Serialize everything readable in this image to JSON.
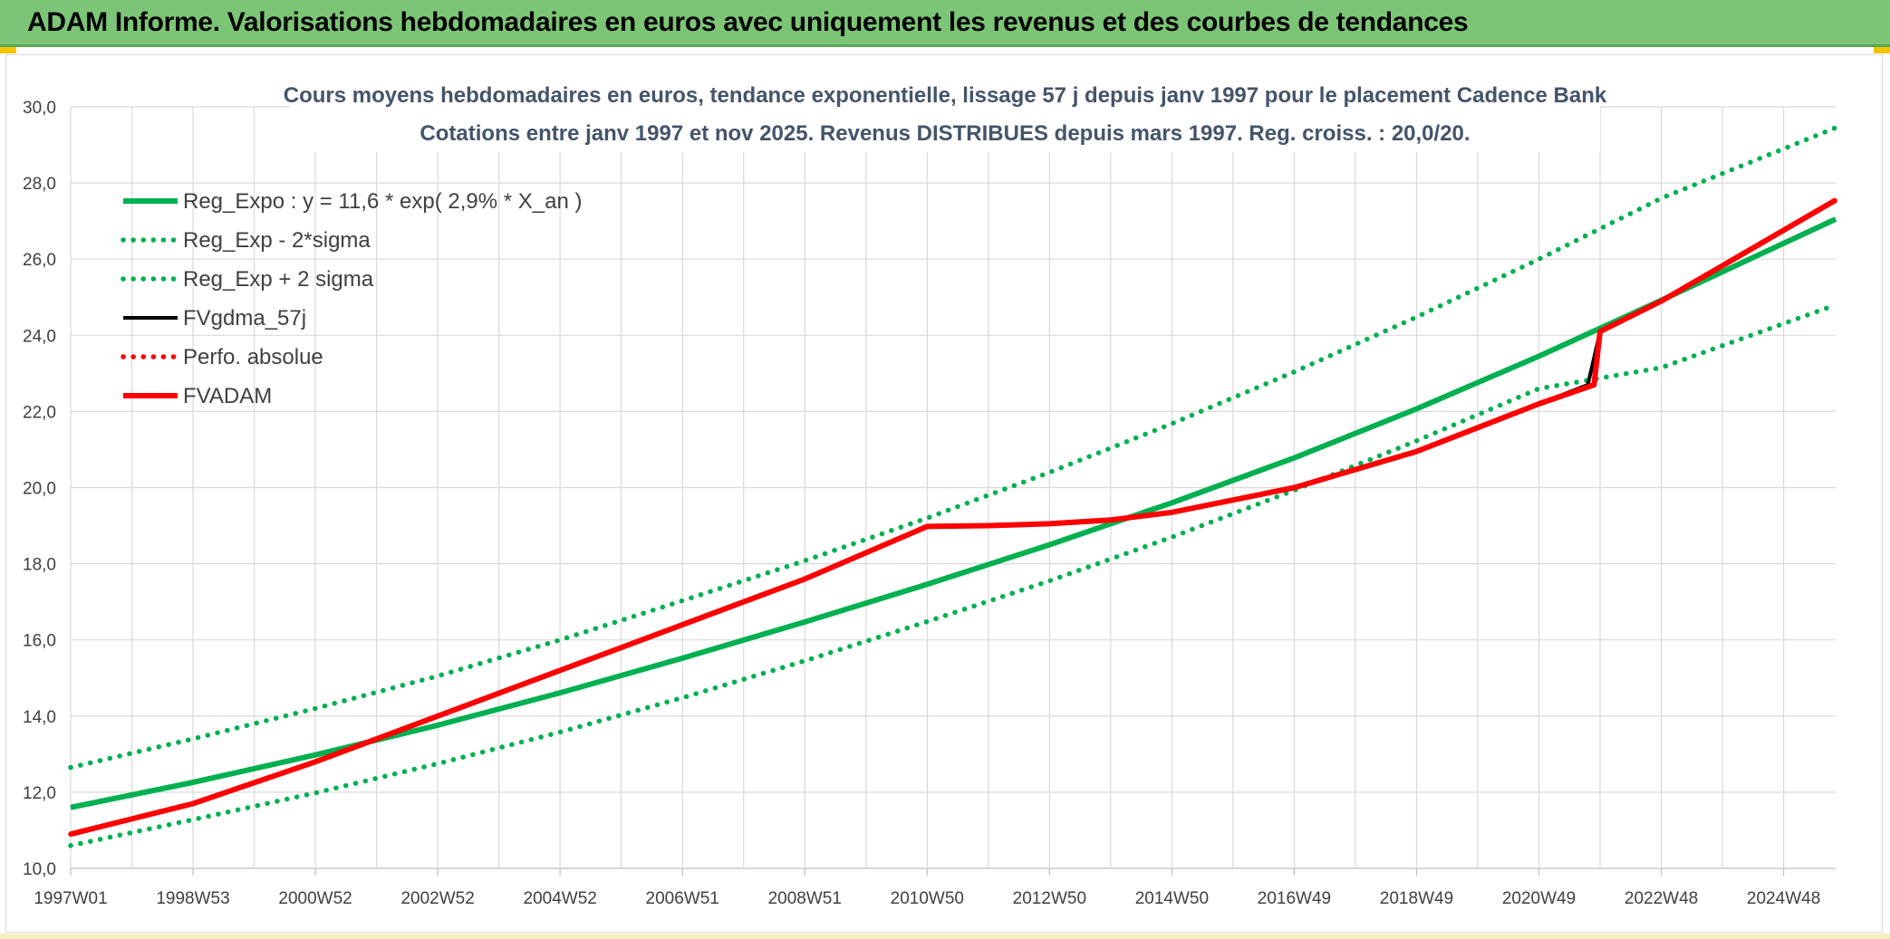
{
  "header": {
    "title": "ADAM Informe. Valorisations hebdomadaires en euros avec uniquement les revenus et des courbes de tendances"
  },
  "colors": {
    "header_bg": "#7cc576",
    "trend_green": "#00b050",
    "red": "#ff0000",
    "black": "#000000",
    "grid": "#d9d9d9",
    "text": "#404040",
    "title_text": "#44546a"
  },
  "chart_data": {
    "type": "line",
    "title_line1": "Cours moyens hebdomadaires en euros, tendance exponentielle, lissage 57 j depuis janv 1997 pour le placement Cadence Bank",
    "title_line2": "Cotations entre janv 1997 et nov 2025. Revenus DISTRIBUES depuis mars 1997. Reg. croiss. : 20,0/20.",
    "xlabel": "",
    "ylabel": "",
    "ylim": [
      10,
      30
    ],
    "yticks": [
      "10,0",
      "12,0",
      "14,0",
      "16,0",
      "18,0",
      "20,0",
      "22,0",
      "24,0",
      "26,0",
      "28,0",
      "30,0"
    ],
    "xlim": [
      1997.0,
      2025.85
    ],
    "xticks": [
      {
        "label": "1997W01",
        "x": 1997.0
      },
      {
        "label": "1998W53",
        "x": 1999.0
      },
      {
        "label": "2000W52",
        "x": 2001.0
      },
      {
        "label": "2002W52",
        "x": 2003.0
      },
      {
        "label": "2004W52",
        "x": 2005.0
      },
      {
        "label": "2006W51",
        "x": 2007.0
      },
      {
        "label": "2008W51",
        "x": 2009.0
      },
      {
        "label": "2010W50",
        "x": 2011.0
      },
      {
        "label": "2012W50",
        "x": 2013.0
      },
      {
        "label": "2014W50",
        "x": 2015.0
      },
      {
        "label": "2016W49",
        "x": 2017.0
      },
      {
        "label": "2018W49",
        "x": 2019.0
      },
      {
        "label": "2020W49",
        "x": 2021.0
      },
      {
        "label": "2022W48",
        "x": 2023.0
      },
      {
        "label": "2024W48",
        "x": 2025.0
      }
    ],
    "grid": true,
    "legend_position": "top-left",
    "series": [
      {
        "name": "Reg_Expo : y = 11,6 * exp( 2,9% *  X_an )",
        "style": "solid-thick",
        "color": "#00b050",
        "x": [
          1997.0,
          1999.0,
          2001.0,
          2003.0,
          2005.0,
          2007.0,
          2009.0,
          2011.0,
          2013.0,
          2015.0,
          2017.0,
          2019.0,
          2021.0,
          2023.0,
          2025.85
        ],
        "y": [
          11.6,
          12.26,
          12.98,
          13.76,
          14.61,
          15.52,
          16.47,
          17.46,
          18.5,
          19.6,
          20.78,
          22.07,
          23.45,
          24.92,
          27.05
        ]
      },
      {
        "name": "Reg_Exp - 2*sigma",
        "style": "dotted",
        "color": "#00b050",
        "x": [
          1997.0,
          1999.0,
          2001.0,
          2003.0,
          2005.0,
          2007.0,
          2009.0,
          2011.0,
          2013.0,
          2015.0,
          2017.0,
          2019.0,
          2021.0,
          2023.0,
          2025.85
        ],
        "y": [
          10.6,
          11.28,
          11.98,
          12.75,
          13.58,
          14.48,
          15.45,
          16.48,
          17.55,
          18.7,
          19.93,
          21.23,
          22.6,
          23.15,
          24.8
        ]
      },
      {
        "name": "Reg_Exp + 2 sigma",
        "style": "dotted",
        "color": "#00b050",
        "x": [
          1997.0,
          1999.0,
          2001.0,
          2003.0,
          2005.0,
          2007.0,
          2009.0,
          2011.0,
          2013.0,
          2015.0,
          2017.0,
          2019.0,
          2021.0,
          2023.0,
          2025.85
        ],
        "y": [
          12.65,
          13.4,
          14.2,
          15.05,
          16.0,
          17.03,
          18.08,
          19.2,
          20.4,
          21.68,
          23.04,
          24.48,
          26.0,
          27.6,
          29.45
        ]
      },
      {
        "name": "FVgdma_57j",
        "style": "solid",
        "color": "#000000",
        "x": [
          1997.0,
          1999.0,
          2001.0,
          2003.0,
          2005.0,
          2007.0,
          2009.0,
          2011.0,
          2012.0,
          2013.0,
          2014.0,
          2015.0,
          2017.0,
          2019.0,
          2021.0,
          2021.8,
          2022.0,
          2023.0,
          2025.85
        ],
        "y": [
          10.9,
          11.7,
          12.8,
          14.0,
          15.2,
          16.4,
          17.6,
          18.98,
          19.0,
          19.05,
          19.15,
          19.35,
          20.0,
          20.95,
          22.2,
          22.7,
          24.1,
          24.9,
          27.55
        ]
      },
      {
        "name": "Perfo. absolue",
        "style": "dotted",
        "color": "#ff0000",
        "x": [
          1997.0,
          1999.0,
          2001.0,
          2003.0,
          2005.0,
          2007.0,
          2009.0,
          2011.0,
          2012.0,
          2013.0,
          2014.0,
          2015.0,
          2017.0,
          2019.0,
          2021.0,
          2021.9,
          2022.0,
          2023.0,
          2025.85
        ],
        "y": [
          10.9,
          11.7,
          12.8,
          14.0,
          15.2,
          16.4,
          17.6,
          18.98,
          19.0,
          19.05,
          19.15,
          19.35,
          20.0,
          20.95,
          22.2,
          22.7,
          24.1,
          24.9,
          27.55
        ]
      },
      {
        "name": "FVADAM",
        "style": "solid-thick",
        "color": "#ff0000",
        "x": [
          1997.0,
          1999.0,
          2001.0,
          2003.0,
          2005.0,
          2007.0,
          2009.0,
          2011.0,
          2012.0,
          2013.0,
          2014.0,
          2015.0,
          2017.0,
          2019.0,
          2021.0,
          2021.9,
          2022.0,
          2023.0,
          2025.85
        ],
        "y": [
          10.9,
          11.7,
          12.8,
          14.0,
          15.2,
          16.4,
          17.6,
          18.98,
          19.0,
          19.05,
          19.15,
          19.35,
          20.0,
          20.95,
          22.2,
          22.7,
          24.1,
          24.9,
          27.55
        ]
      }
    ]
  }
}
